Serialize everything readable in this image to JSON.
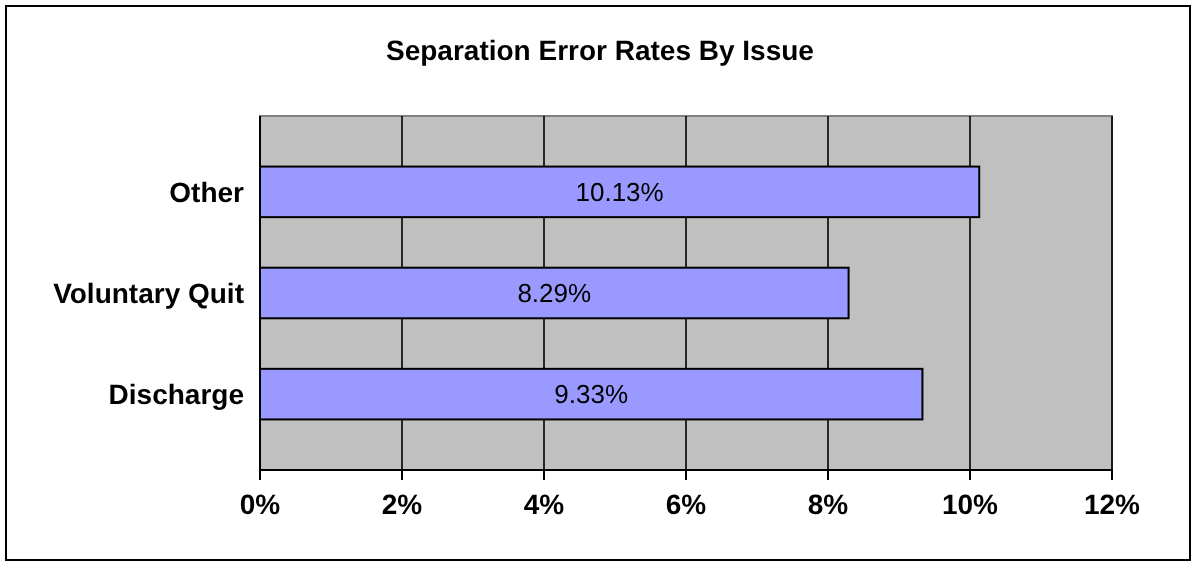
{
  "chart_data": {
    "type": "bar",
    "title": "Separation Error Rates By Issue",
    "orientation": "horizontal",
    "categories": [
      "Other",
      "Voluntary Quit",
      "Discharge"
    ],
    "values": [
      10.13,
      8.29,
      9.33
    ],
    "color": "#9999ff",
    "value_labels": [
      "10.13%",
      "8.29%",
      "9.33%"
    ],
    "xlim": [
      0,
      12
    ],
    "xticks": [
      {
        "value": 0,
        "label": "0%"
      },
      {
        "value": 2,
        "label": "2%"
      },
      {
        "value": 4,
        "label": "4%"
      },
      {
        "value": 6,
        "label": "6%"
      },
      {
        "value": 8,
        "label": "8%"
      },
      {
        "value": 10,
        "label": "10%"
      },
      {
        "value": 12,
        "label": "12%"
      }
    ],
    "grid": "x"
  }
}
